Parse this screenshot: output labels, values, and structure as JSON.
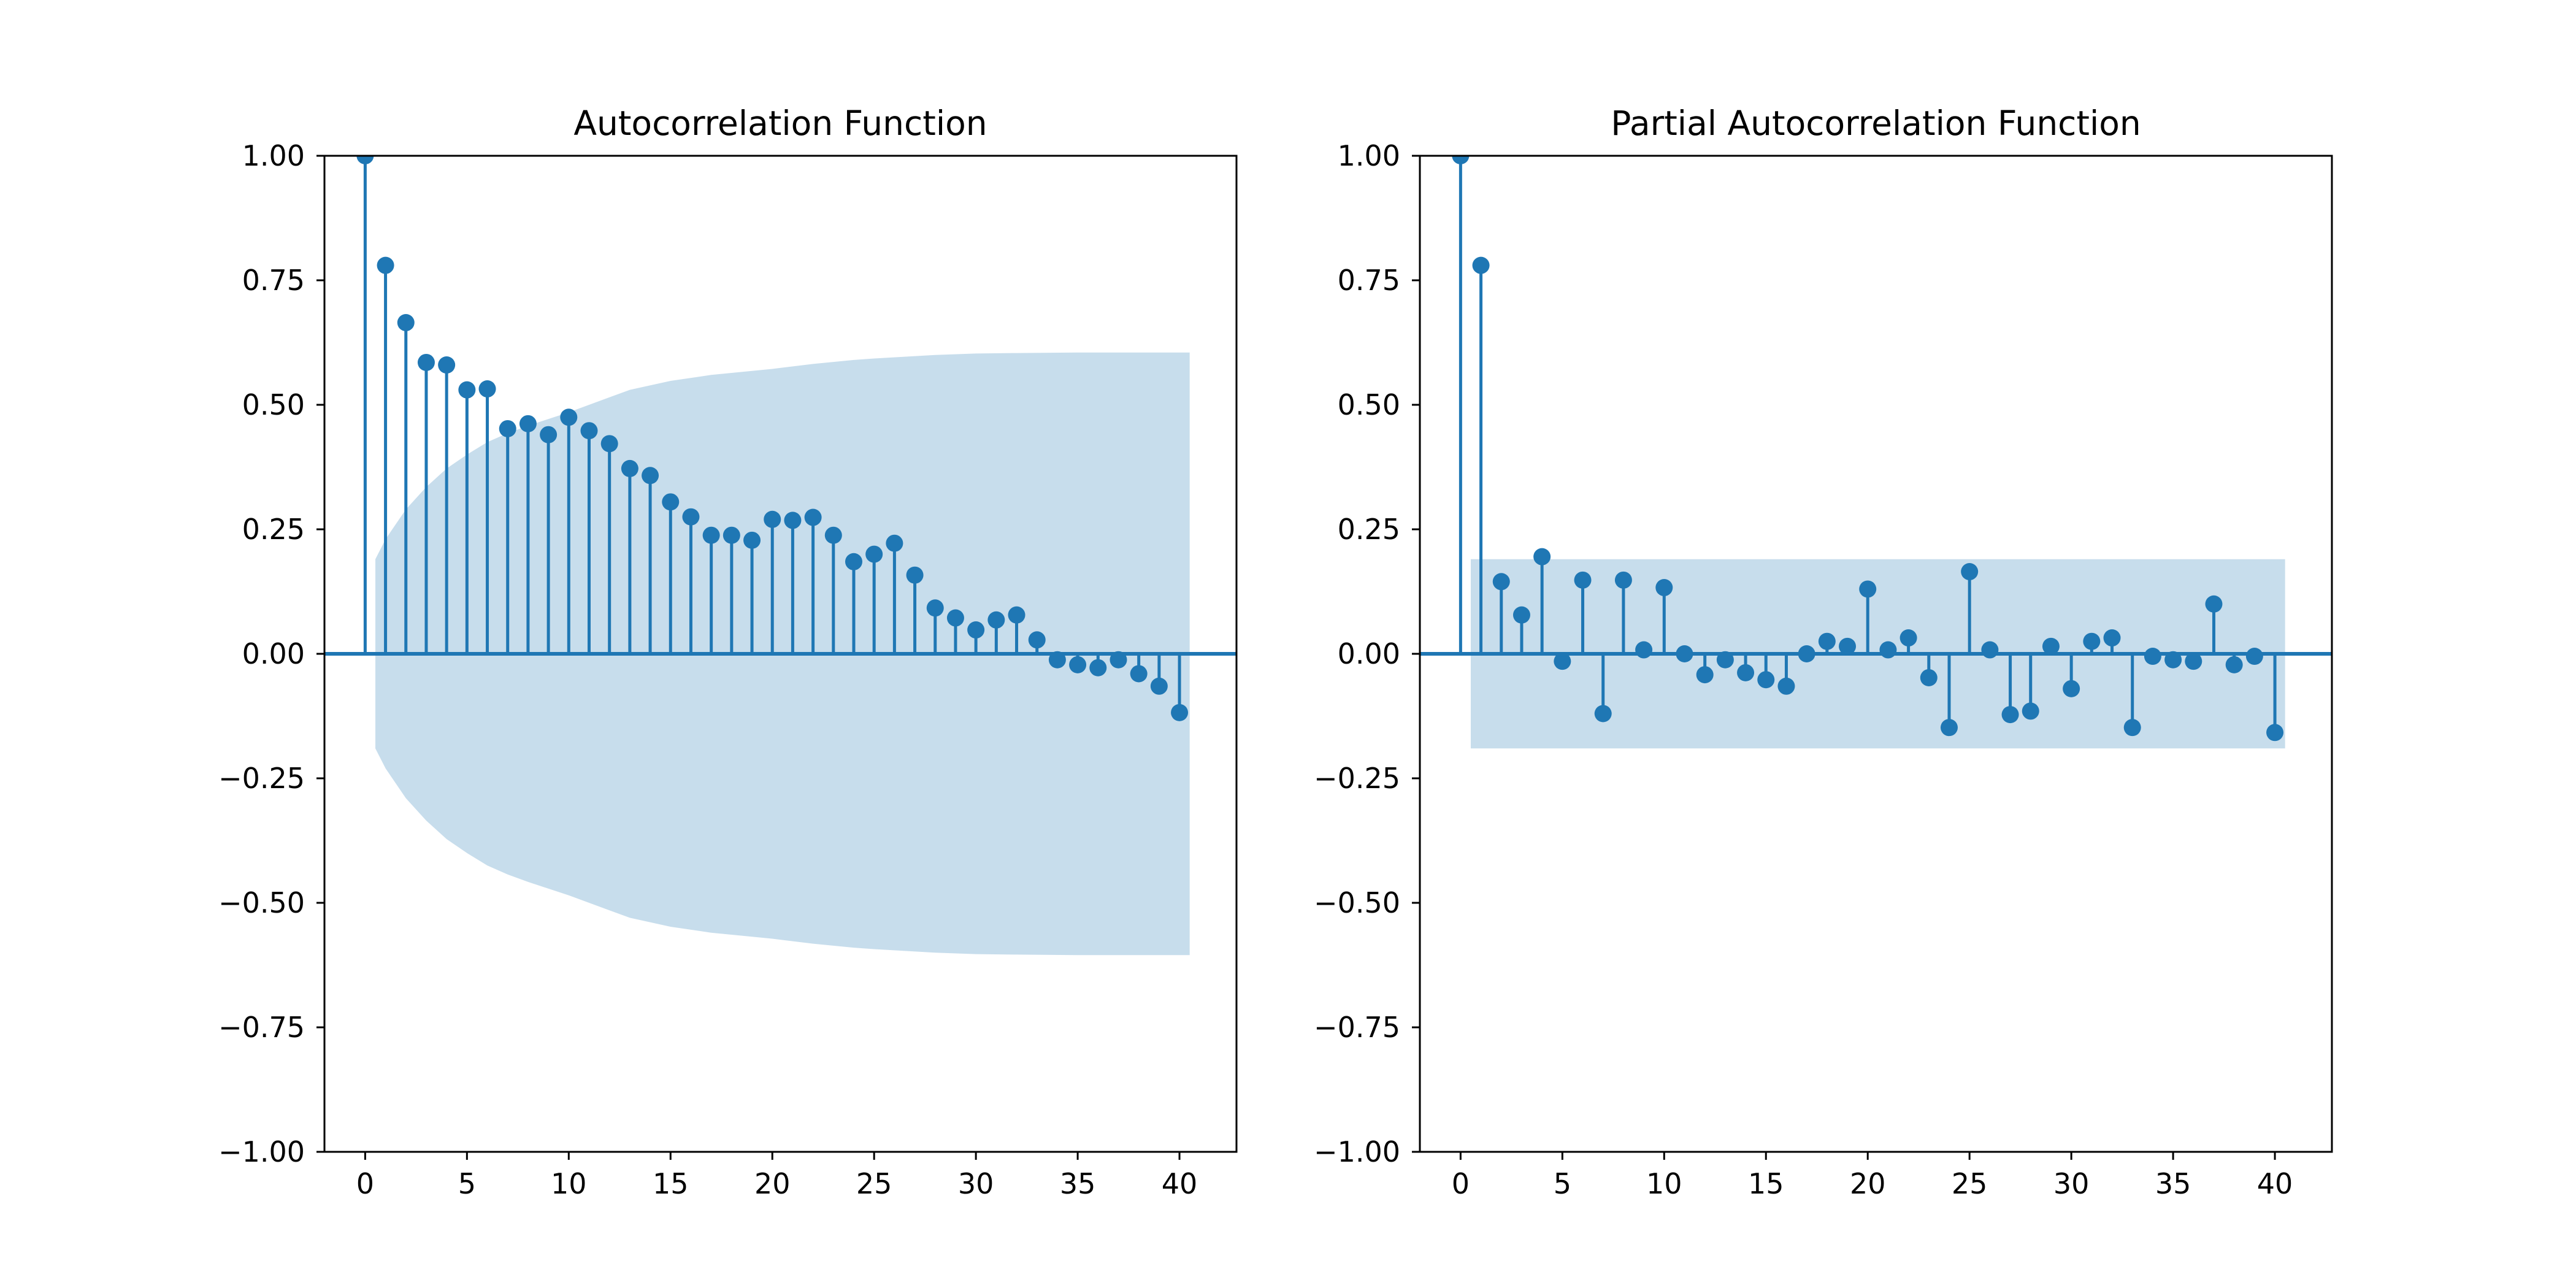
{
  "colors": {
    "stem": "#1f77b4",
    "band": "#1f77b4",
    "band_opacity": 0.25,
    "axes": "#000000",
    "background": "#ffffff"
  },
  "chart_data": [
    {
      "type": "stem",
      "title": "Autocorrelation Function",
      "xlabel": "",
      "ylabel": "",
      "xlim": [
        -2,
        42.8
      ],
      "ylim": [
        -1.0,
        1.0
      ],
      "xticks": [
        0,
        5,
        10,
        15,
        20,
        25,
        30,
        35,
        40
      ],
      "xtick_labels": [
        "0",
        "5",
        "10",
        "15",
        "20",
        "25",
        "30",
        "35",
        "40"
      ],
      "yticks": [
        1.0,
        0.75,
        0.5,
        0.25,
        0.0,
        -0.25,
        -0.5,
        -0.75,
        -1.0
      ],
      "ytick_labels": [
        "1.00",
        "0.75",
        "0.50",
        "0.25",
        "0.00",
        "−0.25",
        "−0.50",
        "−0.75",
        "−1.00"
      ],
      "grid": false,
      "lags": [
        0,
        1,
        2,
        3,
        4,
        5,
        6,
        7,
        8,
        9,
        10,
        11,
        12,
        13,
        14,
        15,
        16,
        17,
        18,
        19,
        20,
        21,
        22,
        23,
        24,
        25,
        26,
        27,
        28,
        29,
        30,
        31,
        32,
        33,
        34,
        35,
        36,
        37,
        38,
        39,
        40
      ],
      "values": [
        1.0,
        0.78,
        0.665,
        0.585,
        0.58,
        0.53,
        0.532,
        0.452,
        0.462,
        0.44,
        0.475,
        0.448,
        0.422,
        0.372,
        0.358,
        0.305,
        0.275,
        0.238,
        0.238,
        0.228,
        0.27,
        0.268,
        0.274,
        0.238,
        0.185,
        0.2,
        0.222,
        0.158,
        0.092,
        0.072,
        0.048,
        0.068,
        0.078,
        0.028,
        -0.012,
        -0.022,
        -0.028,
        -0.012,
        -0.04,
        -0.065,
        -0.118
      ],
      "confidence_band": {
        "lags": [
          0.5,
          1,
          2,
          3,
          4,
          5,
          6,
          7,
          8,
          10,
          12,
          13,
          15,
          17,
          20,
          22,
          24,
          25,
          28,
          30,
          32,
          35,
          38,
          40.5
        ],
        "upper": [
          0.19,
          0.23,
          0.29,
          0.335,
          0.372,
          0.4,
          0.425,
          0.443,
          0.458,
          0.485,
          0.515,
          0.53,
          0.548,
          0.56,
          0.572,
          0.582,
          0.59,
          0.593,
          0.6,
          0.603,
          0.604,
          0.605,
          0.605,
          0.605
        ]
      }
    },
    {
      "type": "stem",
      "title": "Partial Autocorrelation Function",
      "xlabel": "",
      "ylabel": "",
      "xlim": [
        -2,
        42.8
      ],
      "ylim": [
        -1.0,
        1.0
      ],
      "xticks": [
        0,
        5,
        10,
        15,
        20,
        25,
        30,
        35,
        40
      ],
      "xtick_labels": [
        "0",
        "5",
        "10",
        "15",
        "20",
        "25",
        "30",
        "35",
        "40"
      ],
      "yticks": [
        1.0,
        0.75,
        0.5,
        0.25,
        0.0,
        -0.25,
        -0.5,
        -0.75,
        -1.0
      ],
      "ytick_labels": [
        "1.00",
        "0.75",
        "0.50",
        "0.25",
        "0.00",
        "−0.25",
        "−0.50",
        "−0.75",
        "−1.00"
      ],
      "grid": false,
      "lags": [
        0,
        1,
        2,
        3,
        4,
        5,
        6,
        7,
        8,
        9,
        10,
        11,
        12,
        13,
        14,
        15,
        16,
        17,
        18,
        19,
        20,
        21,
        22,
        23,
        24,
        25,
        26,
        27,
        28,
        29,
        30,
        31,
        32,
        33,
        34,
        35,
        36,
        37,
        38,
        39,
        40
      ],
      "values": [
        1.0,
        0.78,
        0.145,
        0.078,
        0.195,
        -0.015,
        0.148,
        -0.12,
        0.148,
        0.008,
        0.133,
        0.0,
        -0.042,
        -0.012,
        -0.038,
        -0.052,
        -0.065,
        0.0,
        0.025,
        0.015,
        0.13,
        0.008,
        0.032,
        -0.048,
        -0.148,
        0.165,
        0.008,
        -0.122,
        -0.115,
        0.015,
        -0.07,
        0.025,
        0.032,
        -0.148,
        -0.005,
        -0.012,
        -0.015,
        0.1,
        -0.022,
        -0.005,
        -0.158
      ],
      "confidence_band": {
        "lags": [
          0.5,
          40.5
        ],
        "upper": [
          0.19,
          0.19
        ]
      }
    }
  ]
}
